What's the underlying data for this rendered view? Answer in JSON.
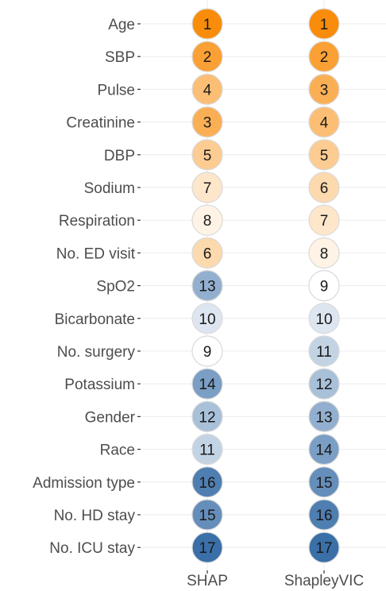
{
  "chart_data": {
    "type": "heatmap",
    "title": "",
    "xlabel": "",
    "ylabel": "",
    "x": [
      "SHAP",
      "ShapleyVIC"
    ],
    "categories": [
      "Age",
      "SBP",
      "Pulse",
      "Creatinine",
      "DBP",
      "Sodium",
      "Respiration",
      "No. ED visit",
      "SpO2",
      "Bicarbonate",
      "No. surgery",
      "Potassium",
      "Gender",
      "Race",
      "Admission type",
      "No. HD stay",
      "No. ICU stay"
    ],
    "series": [
      {
        "name": "SHAP",
        "values": [
          1,
          2,
          4,
          3,
          5,
          7,
          8,
          6,
          13,
          10,
          9,
          14,
          12,
          11,
          16,
          15,
          17
        ]
      },
      {
        "name": "ShapleyVIC",
        "values": [
          1,
          2,
          3,
          4,
          5,
          6,
          7,
          8,
          9,
          10,
          11,
          12,
          13,
          14,
          15,
          16,
          17
        ]
      }
    ],
    "value_range": [
      1,
      17
    ],
    "midpoint": 9,
    "colors": {
      "low": "#f98c0a",
      "mid": "#ffffff",
      "high": "#3a6fa8",
      "circle_border": "#d9d9d9",
      "grid": "#ebebeb"
    },
    "grid": true,
    "legend": "none"
  }
}
